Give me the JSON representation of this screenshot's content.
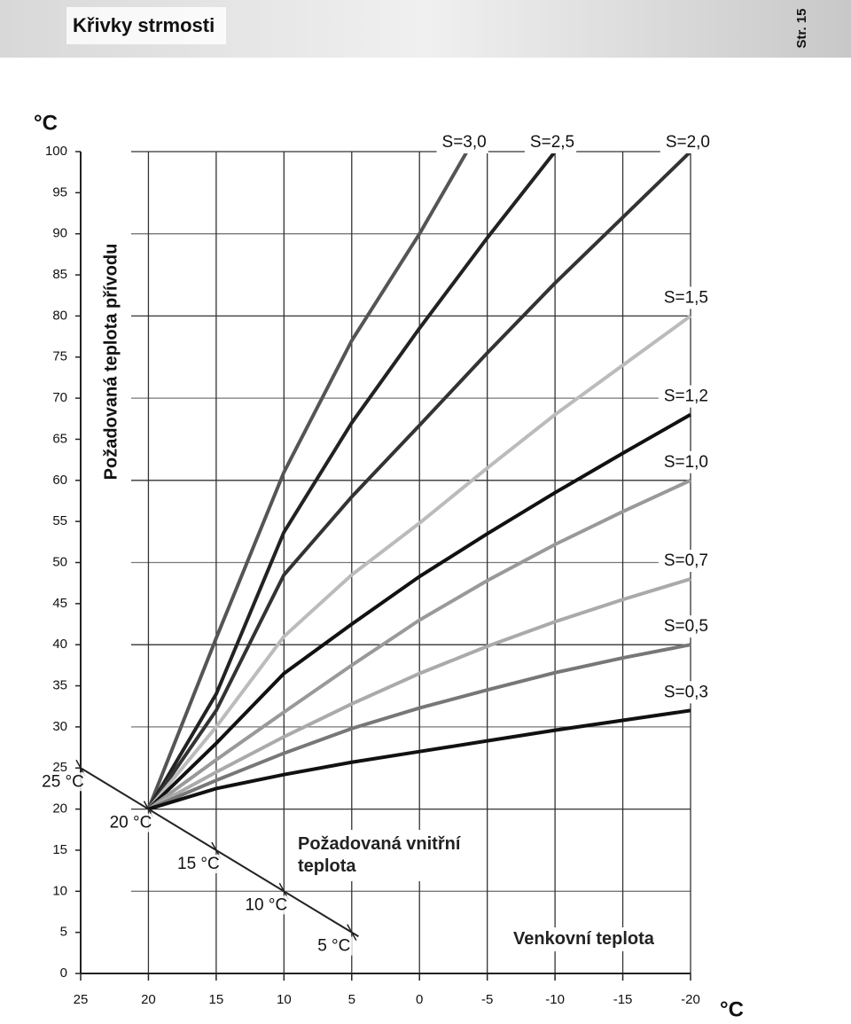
{
  "header": {
    "title": "Křivky strmosti",
    "page": "Str. 15"
  },
  "chart_data": {
    "type": "line",
    "y_label": "Požadovaná teplota přívodu",
    "y_unit": "°C",
    "x_label": "Venkovní teplota",
    "x_unit": "°C",
    "xlim": [
      25,
      -20
    ],
    "xticks": [
      25,
      20,
      15,
      10,
      5,
      0,
      -5,
      -10,
      -15,
      -20
    ],
    "ylim": [
      0,
      100
    ],
    "yticks": [
      0,
      5,
      10,
      15,
      20,
      25,
      30,
      35,
      40,
      45,
      50,
      55,
      60,
      65,
      70,
      75,
      80,
      85,
      90,
      95,
      100
    ],
    "grid": true,
    "x": [
      20,
      15,
      10,
      5,
      0,
      -5,
      -10,
      -15,
      -20
    ],
    "series": [
      {
        "name": "S=3,0",
        "color": "#555555",
        "x": [
          20,
          15,
          10,
          5,
          0,
          -3.5
        ],
        "values": [
          20,
          40.8,
          61,
          77,
          90,
          100
        ]
      },
      {
        "name": "S=2,5",
        "color": "#222222",
        "values": [
          20,
          34,
          53.7,
          67,
          78.5,
          89.5,
          100,
          null,
          null
        ]
      },
      {
        "name": "S=2,0",
        "color": "#333333",
        "values": [
          20,
          32,
          48.5,
          58,
          66.7,
          75.5,
          84,
          92,
          100
        ]
      },
      {
        "name": "S=1,5",
        "color": "#bbbbbb",
        "values": [
          20,
          30,
          41,
          48.5,
          54.8,
          61.5,
          68,
          74,
          80
        ]
      },
      {
        "name": "S=1,2",
        "color": "#111111",
        "values": [
          20,
          28,
          36.5,
          42.5,
          48.3,
          53.5,
          58.5,
          63.3,
          68
        ]
      },
      {
        "name": "S=1,0",
        "color": "#999999",
        "values": [
          20,
          26,
          31.8,
          37.5,
          43,
          47.8,
          52.2,
          56.2,
          60
        ]
      },
      {
        "name": "S=0,7",
        "color": "#aaaaaa",
        "values": [
          20,
          24.5,
          28.8,
          32.8,
          36.5,
          39.8,
          42.8,
          45.5,
          48
        ]
      },
      {
        "name": "S=0,5",
        "color": "#777777",
        "values": [
          20,
          23.5,
          26.8,
          29.8,
          32.3,
          34.5,
          36.6,
          38.4,
          40
        ]
      },
      {
        "name": "S=0,3",
        "color": "#111111",
        "values": [
          20,
          22.5,
          24.2,
          25.7,
          27,
          28.3,
          29.6,
          30.8,
          32
        ]
      }
    ],
    "indoor_line": {
      "title": "Požadovaná vnitřní teplota",
      "x": [
        25,
        4.5
      ],
      "values": [
        25,
        4.5
      ],
      "ticks": [
        {
          "value": 25,
          "label": "25 °C"
        },
        {
          "value": 20,
          "label": "20 °C"
        },
        {
          "value": 15,
          "label": "15 °C"
        },
        {
          "value": 10,
          "label": "10 °C"
        },
        {
          "value": 5,
          "label": "5 °C"
        }
      ]
    }
  }
}
